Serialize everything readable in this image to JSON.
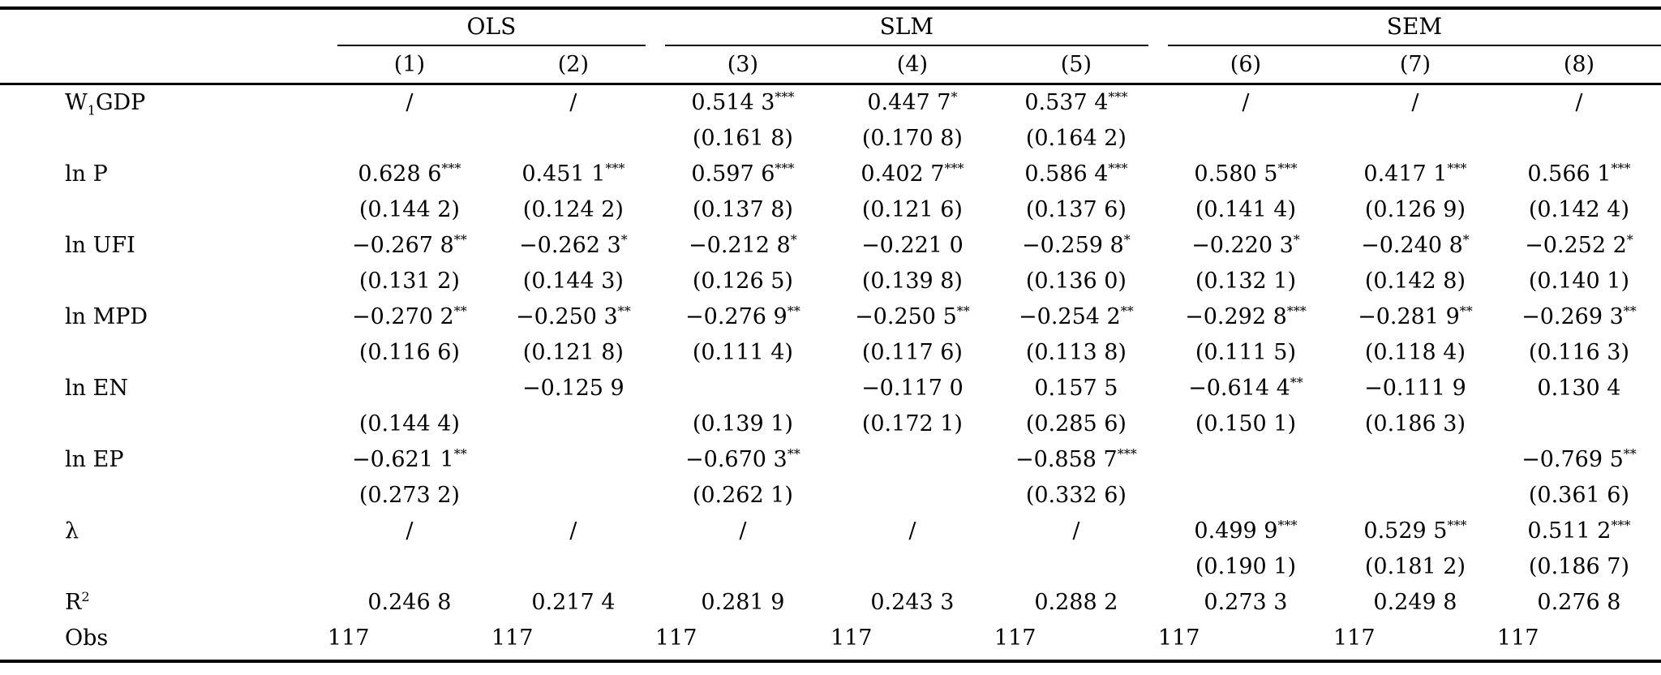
{
  "groups": {
    "ols": "OLS",
    "slm": "SLM",
    "sem": "SEM"
  },
  "columns": [
    "(1)",
    "(2)",
    "(3)",
    "(4)",
    "(5)",
    "(6)",
    "(7)",
    "(8)"
  ],
  "labels": {
    "w1gdp_prefix": "W",
    "w1gdp_sub": "1",
    "w1gdp_suffix": "GDP",
    "lnp": "ln P",
    "lnufi": "ln UFI",
    "lnmpd": "ln MPD",
    "lnen": "ln EN",
    "lnep": "ln EP",
    "lambda": "λ",
    "r2_base": "R",
    "r2_sup": "2",
    "obs": "Obs"
  },
  "rows": {
    "w1gdp": {
      "coef": [
        {
          "v": "/",
          "s": ""
        },
        {
          "v": "/",
          "s": ""
        },
        {
          "v": "0.514 3",
          "s": "***"
        },
        {
          "v": "0.447 7",
          "s": "*"
        },
        {
          "v": "0.537 4",
          "s": "***"
        },
        {
          "v": "/",
          "s": ""
        },
        {
          "v": "/",
          "s": ""
        },
        {
          "v": "/",
          "s": ""
        }
      ],
      "se": [
        "",
        "",
        "(0.161 8)",
        "(0.170 8)",
        "(0.164 2)",
        "",
        "",
        ""
      ]
    },
    "lnp": {
      "coef": [
        {
          "v": "0.628 6",
          "s": "***"
        },
        {
          "v": "0.451 1",
          "s": "***"
        },
        {
          "v": "0.597 6",
          "s": "***"
        },
        {
          "v": "0.402 7",
          "s": "***"
        },
        {
          "v": "0.586 4",
          "s": "***"
        },
        {
          "v": "0.580 5",
          "s": "***"
        },
        {
          "v": "0.417 1",
          "s": "***"
        },
        {
          "v": "0.566 1",
          "s": "***"
        }
      ],
      "se": [
        "(0.144 2)",
        "(0.124 2)",
        "(0.137 8)",
        "(0.121 6)",
        "(0.137 6)",
        "(0.141 4)",
        "(0.126 9)",
        "(0.142 4)"
      ]
    },
    "lnufi": {
      "coef": [
        {
          "v": "−0.267 8",
          "s": "**"
        },
        {
          "v": "−0.262 3",
          "s": "*"
        },
        {
          "v": "−0.212 8",
          "s": "*"
        },
        {
          "v": "−0.221 0",
          "s": ""
        },
        {
          "v": "−0.259 8",
          "s": "*"
        },
        {
          "v": "−0.220 3",
          "s": "*"
        },
        {
          "v": "−0.240 8",
          "s": "*"
        },
        {
          "v": "−0.252 2",
          "s": "*"
        }
      ],
      "se": [
        "(0.131 2)",
        "(0.144 3)",
        "(0.126 5)",
        "(0.139 8)",
        "(0.136 0)",
        "(0.132 1)",
        "(0.142 8)",
        "(0.140 1)"
      ]
    },
    "lnmpd": {
      "coef": [
        {
          "v": "−0.270 2",
          "s": "**"
        },
        {
          "v": "−0.250 3",
          "s": "**"
        },
        {
          "v": "−0.276 9",
          "s": "**"
        },
        {
          "v": "−0.250 5",
          "s": "**"
        },
        {
          "v": "−0.254 2",
          "s": "**"
        },
        {
          "v": "−0.292 8",
          "s": "***"
        },
        {
          "v": "−0.281 9",
          "s": "**"
        },
        {
          "v": "−0.269 3",
          "s": "**"
        }
      ],
      "se": [
        "(0.116 6)",
        "(0.121 8)",
        "(0.111 4)",
        "(0.117 6)",
        "(0.113 8)",
        "(0.111 5)",
        "(0.118 4)",
        "(0.116 3)"
      ]
    },
    "lnen": {
      "coef": [
        {
          "v": "",
          "s": ""
        },
        {
          "v": "−0.125 9",
          "s": ""
        },
        {
          "v": "",
          "s": ""
        },
        {
          "v": "−0.117 0",
          "s": ""
        },
        {
          "v": "0.157 5",
          "s": ""
        },
        {
          "v": "−0.614 4",
          "s": "**"
        },
        {
          "v": "−0.111 9",
          "s": ""
        },
        {
          "v": "0.130 4",
          "s": ""
        }
      ],
      "se": [
        "(0.144 4)",
        "",
        "(0.139 1)",
        "(0.172 1)",
        "(0.285 6)",
        "(0.150 1)",
        "(0.186 3)",
        ""
      ]
    },
    "lnep": {
      "coef": [
        {
          "v": "−0.621 1",
          "s": "**"
        },
        {
          "v": "",
          "s": ""
        },
        {
          "v": "−0.670 3",
          "s": "**"
        },
        {
          "v": "",
          "s": ""
        },
        {
          "v": "−0.858 7",
          "s": "***"
        },
        {
          "v": "",
          "s": ""
        },
        {
          "v": "",
          "s": ""
        },
        {
          "v": "−0.769 5",
          "s": "**"
        }
      ],
      "se": [
        "(0.273 2)",
        "",
        "(0.262 1)",
        "",
        "(0.332 6)",
        "",
        "",
        "(0.361 6)"
      ]
    },
    "lambda": {
      "coef": [
        {
          "v": "/",
          "s": ""
        },
        {
          "v": "/",
          "s": ""
        },
        {
          "v": "/",
          "s": ""
        },
        {
          "v": "/",
          "s": ""
        },
        {
          "v": "/",
          "s": ""
        },
        {
          "v": "0.499 9",
          "s": "***"
        },
        {
          "v": "0.529 5",
          "s": "***"
        },
        {
          "v": "0.511 2",
          "s": "***"
        }
      ],
      "se": [
        "",
        "",
        "",
        "",
        "",
        "(0.190 1)",
        "(0.181 2)",
        "(0.186 7)"
      ]
    },
    "r2": [
      "0.246 8",
      "0.217 4",
      "0.281 9",
      "0.243 3",
      "0.288 2",
      "0.273 3",
      "0.249 8",
      "0.276 8"
    ],
    "obs": [
      "117",
      "117",
      "117",
      "117",
      "117",
      "117",
      "117",
      "117"
    ]
  }
}
